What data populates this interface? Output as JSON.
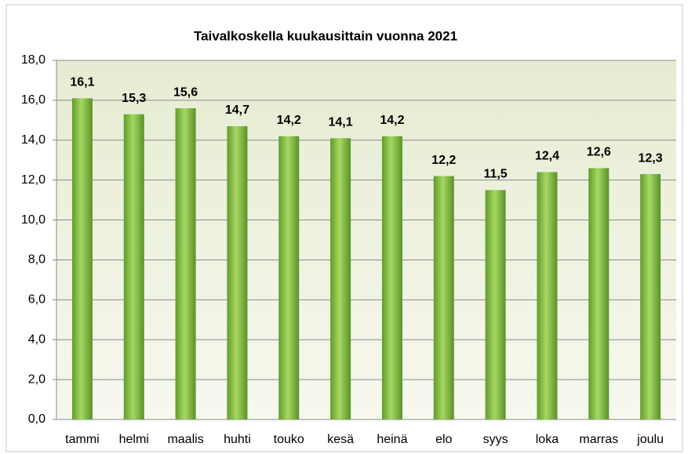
{
  "chart_data": {
    "type": "bar",
    "title": "Taivalkoskella kuukausittain vuonna 2021",
    "categories": [
      "tammi",
      "helmi",
      "maalis",
      "huhti",
      "touko",
      "kesä",
      "heinä",
      "elo",
      "syys",
      "loka",
      "marras",
      "joulu"
    ],
    "values": [
      16.1,
      15.3,
      15.6,
      14.7,
      14.2,
      14.1,
      14.2,
      12.2,
      11.5,
      12.4,
      12.6,
      12.3
    ],
    "value_labels": [
      "16,1",
      "15,3",
      "15,6",
      "14,7",
      "14,2",
      "14,1",
      "14,2",
      "12,2",
      "11,5",
      "12,4",
      "12,6",
      "12,3"
    ],
    "color": "#7fbf3f",
    "ylim": [
      0,
      18
    ],
    "yticks": [
      {
        "value": 0,
        "label": "0,0"
      },
      {
        "value": 2,
        "label": "2,0"
      },
      {
        "value": 4,
        "label": "4,0"
      },
      {
        "value": 6,
        "label": "6,0"
      },
      {
        "value": 8,
        "label": "8,0"
      },
      {
        "value": 10,
        "label": "10,0"
      },
      {
        "value": 12,
        "label": "12,0"
      },
      {
        "value": 14,
        "label": "14,0"
      },
      {
        "value": 16,
        "label": "16,0"
      },
      {
        "value": 18,
        "label": "18,0"
      }
    ],
    "grid": true
  }
}
